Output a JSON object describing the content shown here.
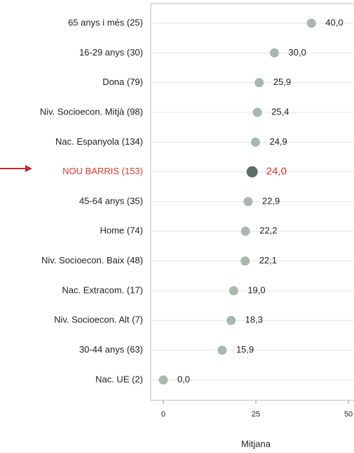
{
  "chart_data": {
    "type": "dot",
    "categories": [
      "65 anys i més (25)",
      "16-29 anys (30)",
      "Dona (79)",
      "Niv. Socioecon. Mitjà (98)",
      "Nac. Espanyola (134)",
      "NOU BARRIS (153)",
      "45-64 anys (35)",
      "Home (74)",
      "Niv. Socioecon. Baix (48)",
      "Nac. Extracom. (17)",
      "Niv. Socioecon. Alt (7)",
      "30-44 anys (63)",
      "Nac. UE (2)"
    ],
    "values": [
      40.0,
      30.0,
      25.9,
      25.4,
      24.9,
      24.0,
      22.9,
      22.2,
      22.1,
      19.0,
      18.3,
      15.9,
      0.0
    ],
    "value_labels": [
      "40,0",
      "30,0",
      "25,9",
      "25,4",
      "24,9",
      "24,0",
      "22,9",
      "22,2",
      "22,1",
      "19,0",
      "18,3",
      "15,9",
      "0,0"
    ],
    "color": "#a8b7b0",
    "highlight": 5,
    "highlight_color": "#5d6d67",
    "highlight_text_color": "#d93a2b",
    "xlabel": "Mitjana",
    "xlim": [
      -3.4,
      51.5
    ],
    "xticks": [
      0,
      25,
      50
    ],
    "grid": true
  }
}
